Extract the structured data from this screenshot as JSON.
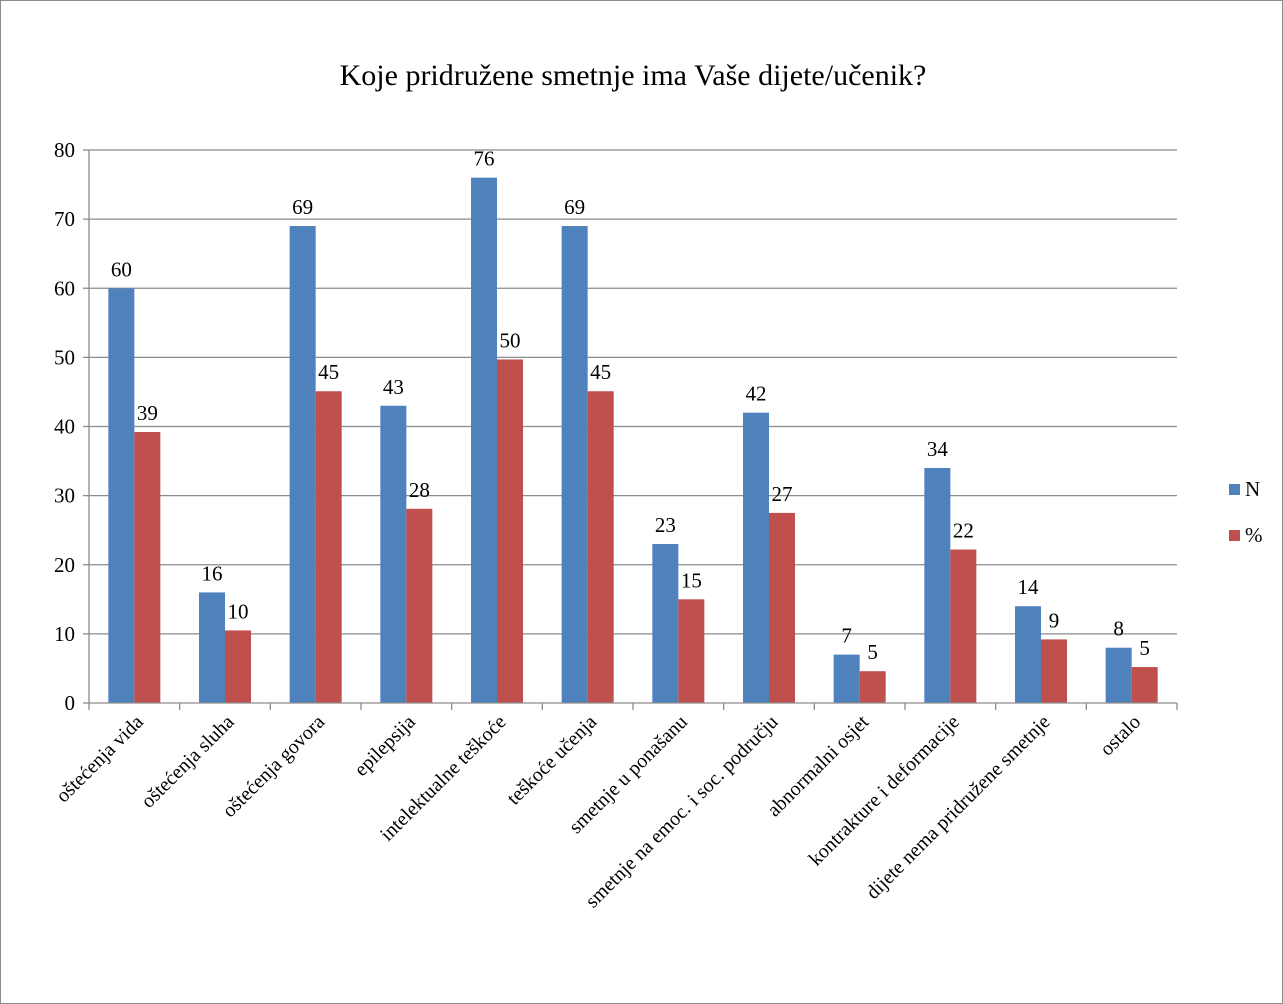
{
  "chart_data": {
    "type": "bar",
    "title": "Koje pridružene smetnje ima Vaše dijete/učenik?",
    "xlabel": "",
    "ylabel": "",
    "ylim": [
      0,
      80
    ],
    "yticks": [
      0,
      10,
      20,
      30,
      40,
      50,
      60,
      70,
      80
    ],
    "grid": true,
    "legend_position": "right",
    "categories": [
      "oštećenja vida",
      "oštećenja sluha",
      "oštećenja govora",
      "epilepsija",
      "intelektualne teškoće",
      "teškoće učenja",
      "smetnje u ponašanu",
      "smetnje na emoc. i soc. području",
      "abnormalni osjet",
      "kontrakture i deformacije",
      "dijete nema pridružene smetnje",
      "ostalo"
    ],
    "series": [
      {
        "name": "N",
        "color": "#4f81bd",
        "values": [
          60,
          16,
          69,
          43,
          76,
          69,
          23,
          42,
          7,
          34,
          14,
          8
        ],
        "labels": [
          "60",
          "16",
          "69",
          "43",
          "76",
          "69",
          "23",
          "42",
          "7",
          "34",
          "14",
          "8"
        ]
      },
      {
        "name": "%",
        "color": "#c0504d",
        "values": [
          39.2,
          10.5,
          45.1,
          28.1,
          49.7,
          45.1,
          15.0,
          27.5,
          4.6,
          22.2,
          9.2,
          5.2
        ],
        "labels": [
          "39",
          "10",
          "45",
          "28",
          "50",
          "45",
          "15",
          "27",
          "5",
          "22",
          "9",
          "5"
        ]
      }
    ]
  }
}
